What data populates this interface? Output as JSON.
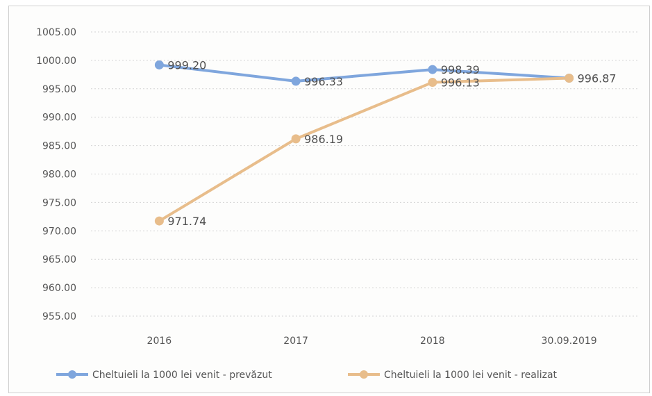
{
  "chart_data": {
    "type": "line",
    "categories": [
      "2016",
      "2017",
      "2018",
      "30.09.2019"
    ],
    "series": [
      {
        "name": "Cheltuieli la 1000 lei venit - prevăzut",
        "color": "#7fa6dd",
        "values": [
          999.2,
          996.33,
          998.39,
          996.87
        ],
        "labels": [
          "999.20",
          "996.33",
          "998.39",
          ""
        ]
      },
      {
        "name": "Cheltuieli la 1000 lei venit - realizat",
        "color": "#e8bd8b",
        "values": [
          971.74,
          986.19,
          996.13,
          996.87
        ],
        "labels": [
          "971.74",
          "986.19",
          "996.13",
          "996.87"
        ]
      }
    ],
    "yticks": [
      "955.00",
      "960.00",
      "965.00",
      "970.00",
      "975.00",
      "980.00",
      "985.00",
      "990.00",
      "995.00",
      "1000.00",
      "1005.00"
    ],
    "ylim": [
      955,
      1005
    ],
    "grid": true,
    "legend_position": "bottom"
  }
}
